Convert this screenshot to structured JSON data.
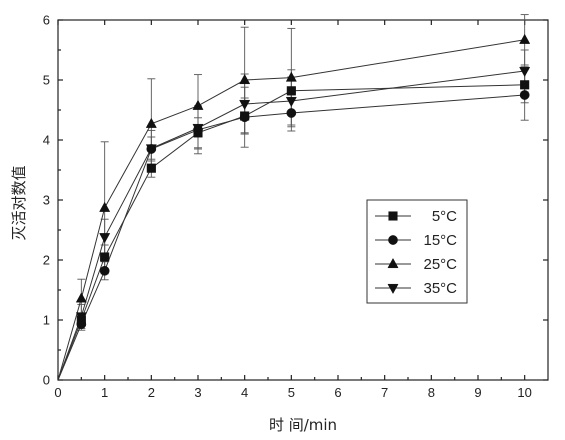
{
  "chart_data": {
    "type": "line",
    "xlabel": "时 间/min",
    "ylabel": "灭活对数值",
    "xlim": [
      0,
      10.5
    ],
    "ylim": [
      0,
      6
    ],
    "xticks": [
      "0",
      "1",
      "2",
      "3",
      "4",
      "5",
      "6",
      "7",
      "8",
      "9",
      "10"
    ],
    "yticks": [
      "0",
      "1",
      "2",
      "3",
      "4",
      "5",
      "6"
    ],
    "legend_position": "center-right",
    "x": [
      0,
      0.5,
      1,
      2,
      3,
      4,
      5,
      10
    ],
    "series": [
      {
        "name": "5°C",
        "marker": "square",
        "values": [
          0,
          1.0,
          2.05,
          3.53,
          4.12,
          4.4,
          4.82,
          4.92
        ],
        "errors": [
          0,
          0.1,
          0.2,
          0.15,
          0.25,
          0.3,
          0.35,
          0.3
        ]
      },
      {
        "name": "15°C",
        "marker": "circle",
        "values": [
          0,
          0.93,
          1.82,
          3.85,
          4.17,
          4.38,
          4.45,
          4.75
        ],
        "errors": [
          0,
          0.1,
          0.15,
          0.2,
          0.4,
          0.5,
          0.3,
          0.42
        ]
      },
      {
        "name": "25°C",
        "marker": "triangle-up",
        "values": [
          0,
          1.36,
          2.87,
          4.27,
          4.57,
          5.0,
          5.04,
          5.67
        ],
        "errors": [
          0,
          0.32,
          1.1,
          0.75,
          0.52,
          0.88,
          0.82,
          0.42
        ]
      },
      {
        "name": "35°C",
        "marker": "triangle-down",
        "values": [
          0,
          1.06,
          2.38,
          3.86,
          4.2,
          4.6,
          4.65,
          5.15
        ],
        "errors": [
          0,
          0.2,
          0.3,
          0.3,
          0.35,
          0.5,
          0.4,
          0.35
        ]
      }
    ]
  }
}
